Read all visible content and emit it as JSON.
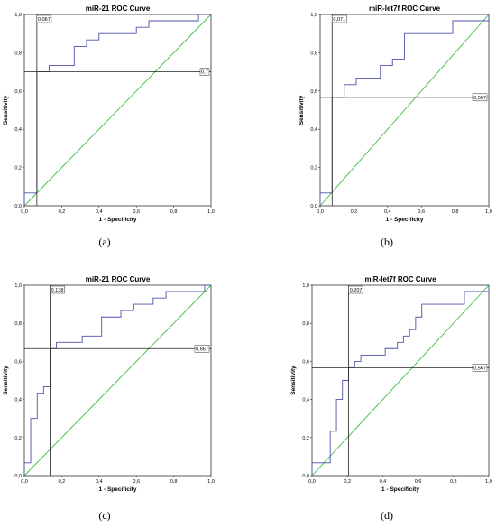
{
  "chart_data": [
    {
      "panel_label": "(a)",
      "type": "line",
      "title": "miR-21 ROC Curve",
      "xlabel": "1 - Specificity",
      "ylabel": "Sensitivity",
      "xlim": [
        0,
        1
      ],
      "ylim": [
        0,
        1
      ],
      "x_ticks": [
        "0,0",
        "0,2",
        "0,4",
        "0,6",
        "0,8",
        "1,0"
      ],
      "y_ticks": [
        "0,0",
        "0,2",
        "0,4",
        "0,6",
        "0,8",
        "1,0"
      ],
      "series": [
        {
          "color": "#4a52a8",
          "points": [
            [
              0,
              0
            ],
            [
              0,
              0.067
            ],
            [
              0.067,
              0.067
            ],
            [
              0.067,
              0.7
            ],
            [
              0.133,
              0.7
            ],
            [
              0.133,
              0.733
            ],
            [
              0.267,
              0.733
            ],
            [
              0.267,
              0.833
            ],
            [
              0.333,
              0.833
            ],
            [
              0.333,
              0.867
            ],
            [
              0.4,
              0.867
            ],
            [
              0.4,
              0.9
            ],
            [
              0.6,
              0.9
            ],
            [
              0.6,
              0.933
            ],
            [
              0.667,
              0.933
            ],
            [
              0.667,
              0.967
            ],
            [
              0.933,
              0.967
            ],
            [
              0.933,
              1
            ],
            [
              1,
              1
            ]
          ]
        },
        {
          "color": "#3fbf3f",
          "points": [
            [
              0,
              0
            ],
            [
              1,
              1
            ]
          ]
        }
      ],
      "cutoff": {
        "x": 0.067,
        "y": 0.7,
        "x_label": "0,067",
        "y_label": "0,7"
      }
    },
    {
      "panel_label": "(b)",
      "type": "line",
      "title": "miR-let7f ROC Curve",
      "xlabel": "1 - Specificity",
      "ylabel": "Sensitivity",
      "xlim": [
        0,
        1
      ],
      "ylim": [
        0,
        1
      ],
      "x_ticks": [
        "0,0",
        "0,2",
        "0,4",
        "0,6",
        "0,8",
        "1,0"
      ],
      "y_ticks": [
        "0,0",
        "0,2",
        "0,4",
        "0,6",
        "0,8",
        "1,0"
      ],
      "series": [
        {
          "color": "#4a52a8",
          "points": [
            [
              0,
              0
            ],
            [
              0,
              0.067
            ],
            [
              0.071,
              0.067
            ],
            [
              0.071,
              0.567
            ],
            [
              0.143,
              0.567
            ],
            [
              0.143,
              0.633
            ],
            [
              0.214,
              0.633
            ],
            [
              0.214,
              0.667
            ],
            [
              0.357,
              0.667
            ],
            [
              0.357,
              0.733
            ],
            [
              0.429,
              0.733
            ],
            [
              0.429,
              0.767
            ],
            [
              0.5,
              0.767
            ],
            [
              0.5,
              0.9
            ],
            [
              0.786,
              0.9
            ],
            [
              0.786,
              0.967
            ],
            [
              1,
              0.967
            ],
            [
              1,
              1
            ]
          ]
        },
        {
          "color": "#3fbf3f",
          "points": [
            [
              0,
              0
            ],
            [
              1,
              1
            ]
          ]
        }
      ],
      "cutoff": {
        "x": 0.071,
        "y": 0.567,
        "x_label": "0,071",
        "y_label": "0,567"
      }
    },
    {
      "panel_label": "(c)",
      "type": "line",
      "title": "miR-21 ROC Curve",
      "xlabel": "1 - Specificity",
      "ylabel": "Sensitivity",
      "xlim": [
        0,
        1
      ],
      "ylim": [
        0,
        1
      ],
      "x_ticks": [
        "0,0",
        "0,2",
        "0,4",
        "0,6",
        "0,8",
        "1,0"
      ],
      "y_ticks": [
        "0,0",
        "0,2",
        "0,4",
        "0,6",
        "0,8",
        "1,0"
      ],
      "series": [
        {
          "color": "#4a52a8",
          "points": [
            [
              0,
              0
            ],
            [
              0,
              0.067
            ],
            [
              0.034,
              0.067
            ],
            [
              0.034,
              0.3
            ],
            [
              0.069,
              0.3
            ],
            [
              0.069,
              0.433
            ],
            [
              0.103,
              0.433
            ],
            [
              0.103,
              0.467
            ],
            [
              0.138,
              0.467
            ],
            [
              0.138,
              0.667
            ],
            [
              0.172,
              0.667
            ],
            [
              0.172,
              0.7
            ],
            [
              0.31,
              0.7
            ],
            [
              0.31,
              0.733
            ],
            [
              0.414,
              0.733
            ],
            [
              0.414,
              0.833
            ],
            [
              0.517,
              0.833
            ],
            [
              0.517,
              0.867
            ],
            [
              0.586,
              0.867
            ],
            [
              0.586,
              0.9
            ],
            [
              0.69,
              0.9
            ],
            [
              0.69,
              0.933
            ],
            [
              0.759,
              0.933
            ],
            [
              0.759,
              0.967
            ],
            [
              0.966,
              0.967
            ],
            [
              0.966,
              1
            ],
            [
              1,
              1
            ]
          ]
        },
        {
          "color": "#3fbf3f",
          "points": [
            [
              0,
              0
            ],
            [
              1,
              1
            ]
          ]
        }
      ],
      "cutoff": {
        "x": 0.138,
        "y": 0.667,
        "x_label": "0,138",
        "y_label": "0,667"
      }
    },
    {
      "panel_label": "(d)",
      "type": "line",
      "title": "miR-let7f ROC Curve",
      "xlabel": "1 - Specificity",
      "ylabel": "Sensitivity",
      "xlim": [
        0,
        1
      ],
      "ylim": [
        0,
        1
      ],
      "x_ticks": [
        "0,0",
        "0,2",
        "0,4",
        "0,6",
        "0,8",
        "1,0"
      ],
      "y_ticks": [
        "0,0",
        "0,2",
        "0,4",
        "0,6",
        "0,8",
        "1,0"
      ],
      "series": [
        {
          "color": "#4a52a8",
          "points": [
            [
              0,
              0
            ],
            [
              0,
              0.067
            ],
            [
              0.103,
              0.067
            ],
            [
              0.103,
              0.233
            ],
            [
              0.138,
              0.233
            ],
            [
              0.138,
              0.4
            ],
            [
              0.172,
              0.4
            ],
            [
              0.172,
              0.5
            ],
            [
              0.207,
              0.5
            ],
            [
              0.207,
              0.567
            ],
            [
              0.241,
              0.567
            ],
            [
              0.241,
              0.6
            ],
            [
              0.276,
              0.6
            ],
            [
              0.276,
              0.633
            ],
            [
              0.414,
              0.633
            ],
            [
              0.414,
              0.667
            ],
            [
              0.483,
              0.667
            ],
            [
              0.483,
              0.7
            ],
            [
              0.517,
              0.7
            ],
            [
              0.517,
              0.733
            ],
            [
              0.552,
              0.733
            ],
            [
              0.552,
              0.767
            ],
            [
              0.586,
              0.767
            ],
            [
              0.586,
              0.833
            ],
            [
              0.621,
              0.833
            ],
            [
              0.621,
              0.9
            ],
            [
              0.862,
              0.9
            ],
            [
              0.862,
              0.967
            ],
            [
              1,
              0.967
            ],
            [
              1,
              1
            ]
          ]
        },
        {
          "color": "#3fbf3f",
          "points": [
            [
              0,
              0
            ],
            [
              1,
              1
            ]
          ]
        }
      ],
      "cutoff": {
        "x": 0.207,
        "y": 0.567,
        "x_label": "0,207",
        "y_label": "0,567"
      }
    }
  ]
}
